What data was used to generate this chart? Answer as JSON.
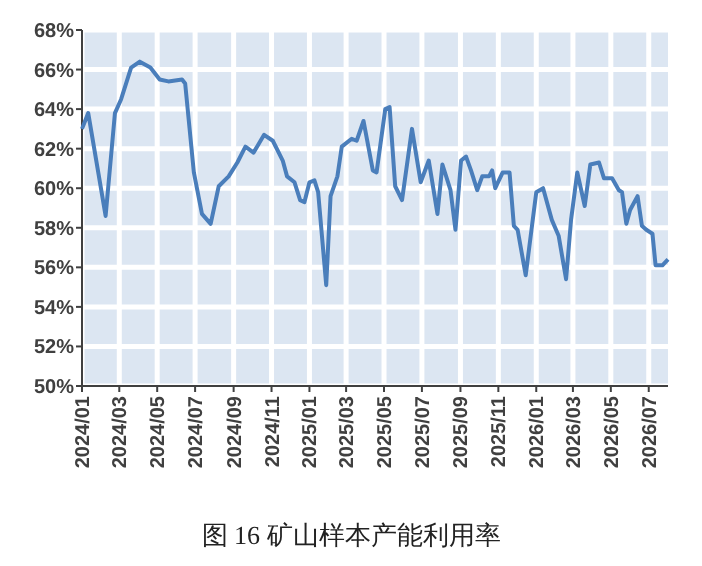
{
  "chart_data": {
    "type": "line",
    "title": "图 16 矿山样本产能利用率",
    "x": [
      "2024-01-01",
      "2024-01-11",
      "2024-02-08",
      "2024-02-23",
      "2024-03-04",
      "2024-03-20",
      "2024-04-03",
      "2024-04-20",
      "2024-05-05",
      "2024-05-19",
      "2024-06-10",
      "2024-06-15",
      "2024-06-29",
      "2024-07-12",
      "2024-07-26",
      "2024-08-08",
      "2024-08-24",
      "2024-09-07",
      "2024-09-20",
      "2024-10-03",
      "2024-10-20",
      "2024-11-03",
      "2024-11-19",
      "2024-11-26",
      "2024-12-08",
      "2024-12-17",
      "2024-12-24",
      "2025-01-01",
      "2025-01-09",
      "2025-01-15",
      "2025-01-28",
      "2025-02-04",
      "2025-02-15",
      "2025-02-22",
      "2025-03-10",
      "2025-03-18",
      "2025-03-29",
      "2025-04-13",
      "2025-04-19",
      "2025-05-03",
      "2025-05-10",
      "2025-05-19",
      "2025-05-30",
      "2025-06-15",
      "2025-06-29",
      "2025-07-12",
      "2025-07-26",
      "2025-08-03",
      "2025-08-16",
      "2025-08-24",
      "2025-09-02",
      "2025-09-10",
      "2025-09-18",
      "2025-09-28",
      "2025-10-06",
      "2025-10-17",
      "2025-10-22",
      "2025-10-27",
      "2025-11-08",
      "2025-11-19",
      "2025-11-26",
      "2025-12-02",
      "2025-12-15",
      "2026-01-01",
      "2026-01-12",
      "2026-01-26",
      "2026-02-06",
      "2026-02-18",
      "2026-02-26",
      "2026-03-08",
      "2026-03-20",
      "2026-03-29",
      "2026-04-12",
      "2026-04-20",
      "2026-05-03",
      "2026-05-14",
      "2026-05-19",
      "2026-05-26",
      "2026-06-01",
      "2026-06-13",
      "2026-06-20",
      "2026-06-27",
      "2026-07-07",
      "2026-07-12",
      "2026-07-23",
      "2026-08-01"
    ],
    "series": [
      {
        "color": "#4a7ebb",
        "values": [
          63.0,
          63.8,
          58.6,
          63.8,
          64.5,
          66.1,
          66.4,
          66.1,
          65.5,
          65.4,
          65.5,
          65.3,
          60.8,
          58.7,
          58.2,
          60.1,
          60.6,
          61.3,
          62.1,
          61.8,
          62.7,
          62.4,
          61.4,
          60.6,
          60.3,
          59.4,
          59.3,
          60.3,
          60.4,
          59.8,
          55.1,
          59.6,
          60.6,
          62.1,
          62.5,
          62.4,
          63.4,
          60.9,
          60.8,
          64.0,
          64.1,
          60.1,
          59.4,
          63.0,
          60.3,
          61.4,
          58.7,
          61.2,
          59.9,
          57.9,
          61.4,
          61.6,
          60.9,
          59.9,
          60.6,
          60.6,
          60.9,
          60.0,
          60.8,
          60.8,
          58.1,
          57.9,
          55.6,
          59.8,
          60.0,
          58.4,
          57.6,
          55.4,
          58.4,
          60.8,
          59.1,
          61.2,
          61.3,
          60.5,
          60.5,
          59.9,
          59.8,
          58.2,
          58.9,
          59.6,
          58.1,
          57.9,
          57.7,
          56.1,
          56.1,
          56.4
        ]
      }
    ],
    "xlim": [
      "2024-01-01",
      "2026-08-01"
    ],
    "xticks": [
      {
        "value": "2024-01-01",
        "label": "2024/01"
      },
      {
        "value": "2024-03-01",
        "label": "2024/03"
      },
      {
        "value": "2024-05-01",
        "label": "2024/05"
      },
      {
        "value": "2024-07-01",
        "label": "2024/07"
      },
      {
        "value": "2024-09-01",
        "label": "2024/09"
      },
      {
        "value": "2024-11-01",
        "label": "2024/11"
      },
      {
        "value": "2025-01-01",
        "label": "2025/01"
      },
      {
        "value": "2025-03-01",
        "label": "2025/03"
      },
      {
        "value": "2025-05-01",
        "label": "2025/05"
      },
      {
        "value": "2025-07-01",
        "label": "2025/07"
      },
      {
        "value": "2025-09-01",
        "label": "2025/09"
      },
      {
        "value": "2025-11-01",
        "label": "2025/11"
      },
      {
        "value": "2026-01-01",
        "label": "2026/01"
      },
      {
        "value": "2026-03-01",
        "label": "2026/03"
      },
      {
        "value": "2026-05-01",
        "label": "2026/05"
      },
      {
        "value": "2026-07-01",
        "label": "2026/07"
      }
    ],
    "ylim": [
      50,
      68
    ],
    "yticks": [
      {
        "value": 50,
        "label": "50%"
      },
      {
        "value": 52,
        "label": "52%"
      },
      {
        "value": 54,
        "label": "54%"
      },
      {
        "value": 56,
        "label": "56%"
      },
      {
        "value": 58,
        "label": "58%"
      },
      {
        "value": 60,
        "label": "60%"
      },
      {
        "value": 62,
        "label": "62%"
      },
      {
        "value": 64,
        "label": "64%"
      },
      {
        "value": 66,
        "label": "66%"
      },
      {
        "value": 68,
        "label": "68%"
      }
    ],
    "grid": true,
    "line_style": "solid"
  }
}
